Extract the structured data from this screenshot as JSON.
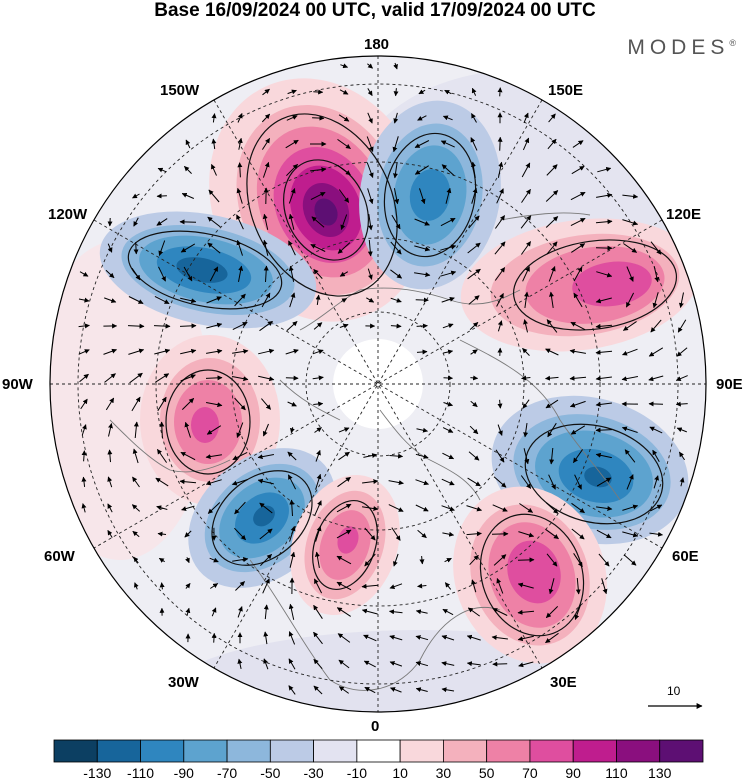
{
  "title": "Base 16/09/2024 00 UTC, valid 17/09/2024 00 UTC",
  "brand": "MODES",
  "brand_mark": "®",
  "longitude_labels": {
    "n180": "180",
    "w150": "150W",
    "e150": "150E",
    "w120": "120W",
    "e120": "120E",
    "w90": "90W",
    "e90": "90E",
    "w60": "60W",
    "e60": "60E",
    "w30": "30W",
    "e30": "30E",
    "zero": "0"
  },
  "vector_scale_label": "10",
  "colorbar": {
    "ticks": [
      "-130",
      "-110",
      "-90",
      "-70",
      "-50",
      "-30",
      "-10",
      "10",
      "30",
      "50",
      "70",
      "90",
      "110",
      "130"
    ],
    "colors": [
      "#0c3f62",
      "#17659b",
      "#2f86bf",
      "#5da3cf",
      "#8db7dc",
      "#bccbe6",
      "#e3e3f1",
      "#ffffff",
      "#f9d8dc",
      "#f4b1bd",
      "#ee81a6",
      "#df4e9f",
      "#bf1d8e",
      "#8a0f7e",
      "#5d0f73"
    ]
  },
  "map_data": {
    "projection": "north-polar-stereographic",
    "field": "anomaly",
    "centers": [
      {
        "label": "150W-180 positive",
        "value": 130
      },
      {
        "label": "180-150E negative",
        "value": -90
      },
      {
        "label": "120W-150W negative",
        "value": -110
      },
      {
        "label": "120E positive",
        "value": 90
      },
      {
        "label": "90W positive",
        "value": 70
      },
      {
        "label": "90E-60E negative",
        "value": -90
      },
      {
        "label": "60W-30W negative",
        "value": -110
      },
      {
        "label": "30W-0 positive",
        "value": 70
      },
      {
        "label": "30E-60E positive",
        "value": 90
      }
    ]
  }
}
